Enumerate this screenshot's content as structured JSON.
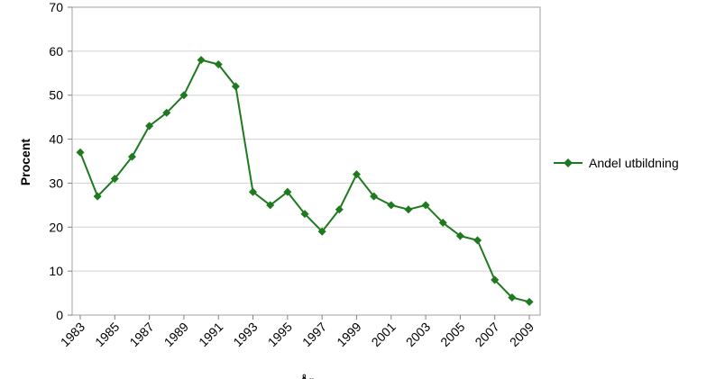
{
  "chart_data": {
    "type": "line",
    "title": "",
    "xlabel": "År",
    "ylabel": "Procent",
    "x": [
      1983,
      1984,
      1985,
      1986,
      1987,
      1988,
      1989,
      1990,
      1991,
      1992,
      1993,
      1994,
      1995,
      1996,
      1997,
      1998,
      1999,
      2000,
      2001,
      2002,
      2003,
      2004,
      2005,
      2006,
      2007,
      2008,
      2009
    ],
    "xticks": [
      "1983",
      "1985",
      "1987",
      "1989",
      "1991",
      "1993",
      "1995",
      "1997",
      "1999",
      "2001",
      "2003",
      "2005",
      "2007",
      "2009"
    ],
    "ylim": [
      0,
      70
    ],
    "yticks": [
      "0",
      "10",
      "20",
      "30",
      "40",
      "50",
      "60",
      "70"
    ],
    "grid": true,
    "legend_position": "right",
    "series": [
      {
        "name": "Andel utbildning",
        "color": "#1f7a1f",
        "values": [
          37,
          27,
          31,
          36,
          43,
          46,
          50,
          58,
          57,
          52,
          28,
          25,
          28,
          23,
          19,
          24,
          32,
          27,
          25,
          24,
          25,
          21,
          18,
          17,
          8,
          4,
          3
        ]
      }
    ]
  }
}
